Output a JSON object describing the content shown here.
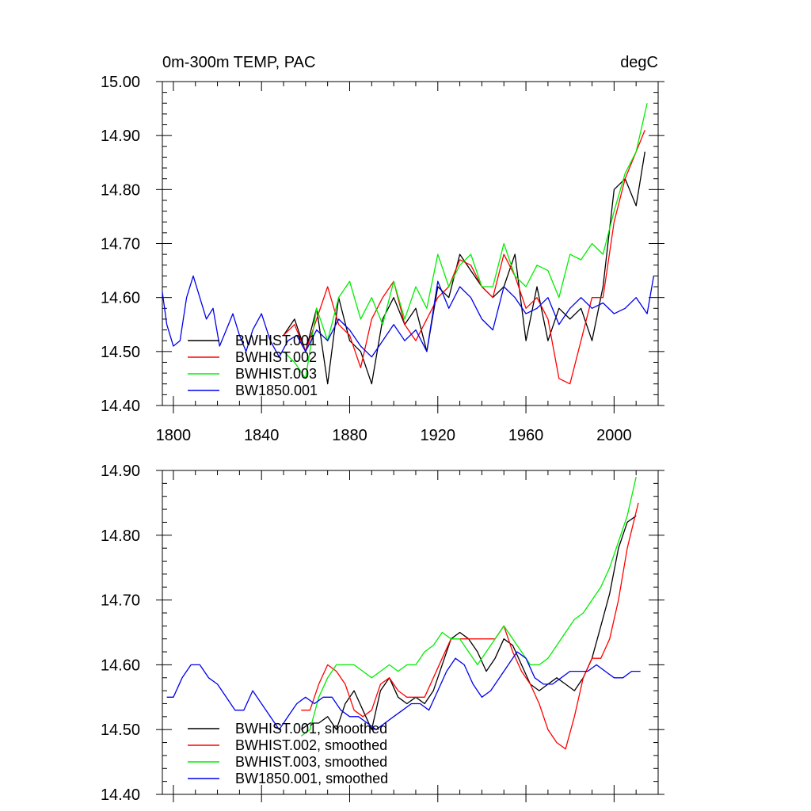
{
  "chart_data": [
    {
      "type": "line",
      "title_left": "0m-300m TEMP, PAC",
      "title_right": "degC",
      "xlabel": "",
      "ylabel": "",
      "xlim": [
        1795,
        2020
      ],
      "ylim": [
        14.4,
        15.0
      ],
      "x_ticks": [
        1800,
        1840,
        1880,
        1920,
        1960,
        2000
      ],
      "y_ticks": [
        14.4,
        14.5,
        14.6,
        14.7,
        14.8,
        14.9,
        15.0
      ],
      "y_tick_labels": [
        "14.40",
        "14.50",
        "14.60",
        "14.70",
        "14.80",
        "14.90",
        "15.00"
      ],
      "x_tick_labels": [
        "1800",
        "1840",
        "1880",
        "1920",
        "1960",
        "2000"
      ],
      "legend_position": "bottom-left",
      "series": [
        {
          "name": "BWHIST.001",
          "color": "#000000",
          "x": [
            1850,
            1855,
            1860,
            1865,
            1870,
            1875,
            1880,
            1885,
            1890,
            1895,
            1900,
            1905,
            1910,
            1915,
            1920,
            1925,
            1930,
            1935,
            1940,
            1945,
            1950,
            1955,
            1960,
            1965,
            1970,
            1975,
            1980,
            1985,
            1990,
            1995,
            2000,
            2005,
            2010,
            2014
          ],
          "y": [
            14.53,
            14.56,
            14.5,
            14.58,
            14.44,
            14.6,
            14.52,
            14.5,
            14.44,
            14.56,
            14.6,
            14.55,
            14.58,
            14.5,
            14.62,
            14.6,
            14.68,
            14.65,
            14.62,
            14.6,
            14.62,
            14.68,
            14.52,
            14.62,
            14.52,
            14.58,
            14.56,
            14.58,
            14.52,
            14.62,
            14.8,
            14.82,
            14.77,
            14.87
          ]
        },
        {
          "name": "BWHIST.002",
          "color": "#ff0000",
          "x": [
            1850,
            1855,
            1860,
            1865,
            1870,
            1875,
            1880,
            1885,
            1890,
            1895,
            1900,
            1905,
            1910,
            1915,
            1920,
            1925,
            1930,
            1935,
            1940,
            1945,
            1950,
            1955,
            1960,
            1965,
            1970,
            1975,
            1980,
            1985,
            1990,
            1995,
            2000,
            2005,
            2010,
            2014
          ],
          "y": [
            14.53,
            14.55,
            14.5,
            14.56,
            14.62,
            14.55,
            14.53,
            14.47,
            14.56,
            14.6,
            14.63,
            14.55,
            14.52,
            14.56,
            14.6,
            14.62,
            14.67,
            14.66,
            14.62,
            14.6,
            14.68,
            14.64,
            14.58,
            14.6,
            14.56,
            14.45,
            14.44,
            14.52,
            14.6,
            14.6,
            14.74,
            14.82,
            14.87,
            14.91
          ]
        },
        {
          "name": "BWHIST.003",
          "color": "#00ee00",
          "x": [
            1850,
            1855,
            1860,
            1865,
            1870,
            1875,
            1880,
            1885,
            1890,
            1895,
            1900,
            1905,
            1910,
            1915,
            1920,
            1925,
            1930,
            1935,
            1940,
            1945,
            1950,
            1955,
            1960,
            1965,
            1970,
            1975,
            1980,
            1985,
            1990,
            1995,
            2000,
            2005,
            2010,
            2015
          ],
          "y": [
            14.5,
            14.48,
            14.45,
            14.58,
            14.52,
            14.6,
            14.63,
            14.56,
            14.6,
            14.55,
            14.63,
            14.56,
            14.62,
            14.58,
            14.68,
            14.62,
            14.66,
            14.68,
            14.62,
            14.62,
            14.7,
            14.64,
            14.62,
            14.66,
            14.65,
            14.6,
            14.68,
            14.67,
            14.7,
            14.68,
            14.76,
            14.83,
            14.87,
            14.96
          ]
        },
        {
          "name": "BW1850.001",
          "color": "#0000ee",
          "x": [
            1795,
            1797,
            1800,
            1803,
            1806,
            1809,
            1812,
            1815,
            1818,
            1821,
            1824,
            1827,
            1830,
            1833,
            1836,
            1840,
            1844,
            1848,
            1852,
            1856,
            1860,
            1865,
            1870,
            1875,
            1880,
            1885,
            1890,
            1895,
            1900,
            1905,
            1910,
            1915,
            1920,
            1925,
            1930,
            1935,
            1940,
            1945,
            1950,
            1955,
            1960,
            1965,
            1970,
            1975,
            1980,
            1985,
            1990,
            1995,
            2000,
            2005,
            2010,
            2015,
            2018
          ],
          "y": [
            14.61,
            14.55,
            14.51,
            14.52,
            14.6,
            14.64,
            14.6,
            14.56,
            14.58,
            14.51,
            14.54,
            14.57,
            14.53,
            14.5,
            14.54,
            14.57,
            14.52,
            14.49,
            14.52,
            14.53,
            14.5,
            14.54,
            14.52,
            14.56,
            14.54,
            14.51,
            14.49,
            14.52,
            14.55,
            14.52,
            14.54,
            14.5,
            14.63,
            14.58,
            14.62,
            14.6,
            14.56,
            14.54,
            14.62,
            14.6,
            14.57,
            14.58,
            14.6,
            14.55,
            14.58,
            14.6,
            14.58,
            14.59,
            14.57,
            14.58,
            14.6,
            14.57,
            14.64
          ]
        }
      ]
    },
    {
      "type": "line",
      "title_left": "",
      "title_right": "",
      "xlabel": "",
      "ylabel": "",
      "xlim": [
        1795,
        2020
      ],
      "ylim": [
        14.4,
        14.9
      ],
      "x_ticks": [
        1800,
        1840,
        1880,
        1920,
        1960,
        2000
      ],
      "y_ticks": [
        14.4,
        14.5,
        14.6,
        14.7,
        14.8,
        14.9
      ],
      "y_tick_labels": [
        "14.40",
        "14.50",
        "14.60",
        "14.70",
        "14.80",
        "14.90"
      ],
      "legend_position": "bottom-left",
      "series": [
        {
          "name": "BWHIST.001, smoothed",
          "color": "#000000",
          "x": [
            1858,
            1862,
            1866,
            1870,
            1874,
            1878,
            1882,
            1886,
            1890,
            1894,
            1898,
            1902,
            1906,
            1910,
            1914,
            1918,
            1922,
            1926,
            1930,
            1934,
            1938,
            1942,
            1946,
            1950,
            1954,
            1958,
            1962,
            1966,
            1970,
            1974,
            1978,
            1982,
            1986,
            1990,
            1994,
            1998,
            2002,
            2006,
            2010
          ],
          "y": [
            14.5,
            14.51,
            14.51,
            14.52,
            14.5,
            14.54,
            14.56,
            14.53,
            14.5,
            14.56,
            14.58,
            14.55,
            14.54,
            14.55,
            14.54,
            14.56,
            14.6,
            14.64,
            14.65,
            14.64,
            14.62,
            14.59,
            14.61,
            14.64,
            14.63,
            14.6,
            14.57,
            14.56,
            14.57,
            14.58,
            14.57,
            14.56,
            14.58,
            14.61,
            14.66,
            14.71,
            14.78,
            14.82,
            14.83
          ]
        },
        {
          "name": "BWHIST.002, smoothed",
          "color": "#ff0000",
          "x": [
            1858,
            1862,
            1866,
            1870,
            1874,
            1878,
            1882,
            1886,
            1890,
            1894,
            1898,
            1902,
            1906,
            1910,
            1914,
            1918,
            1922,
            1926,
            1930,
            1934,
            1938,
            1942,
            1946,
            1950,
            1954,
            1958,
            1962,
            1966,
            1970,
            1974,
            1978,
            1982,
            1986,
            1990,
            1994,
            1998,
            2002,
            2006,
            2011
          ],
          "y": [
            14.53,
            14.53,
            14.57,
            14.6,
            14.59,
            14.57,
            14.53,
            14.52,
            14.53,
            14.57,
            14.58,
            14.56,
            14.55,
            14.55,
            14.55,
            14.58,
            14.61,
            14.64,
            14.64,
            14.64,
            14.64,
            14.64,
            14.64,
            14.66,
            14.62,
            14.59,
            14.57,
            14.54,
            14.5,
            14.48,
            14.47,
            14.52,
            14.58,
            14.61,
            14.61,
            14.64,
            14.7,
            14.78,
            14.85
          ]
        },
        {
          "name": "BWHIST.003, smoothed",
          "color": "#00ee00",
          "x": [
            1858,
            1862,
            1866,
            1870,
            1874,
            1878,
            1882,
            1886,
            1890,
            1894,
            1898,
            1902,
            1906,
            1910,
            1914,
            1918,
            1922,
            1926,
            1930,
            1934,
            1938,
            1942,
            1946,
            1950,
            1954,
            1958,
            1962,
            1966,
            1970,
            1974,
            1978,
            1982,
            1986,
            1990,
            1994,
            1998,
            2002,
            2006,
            2010
          ],
          "y": [
            14.49,
            14.5,
            14.55,
            14.58,
            14.6,
            14.6,
            14.6,
            14.59,
            14.58,
            14.59,
            14.6,
            14.59,
            14.6,
            14.6,
            14.62,
            14.63,
            14.65,
            14.64,
            14.64,
            14.62,
            14.6,
            14.62,
            14.64,
            14.66,
            14.64,
            14.62,
            14.6,
            14.6,
            14.61,
            14.63,
            14.65,
            14.67,
            14.68,
            14.7,
            14.72,
            14.75,
            14.79,
            14.83,
            14.89
          ]
        },
        {
          "name": "BW1850.001, smoothed",
          "color": "#0000ee",
          "x": [
            1797,
            1800,
            1804,
            1808,
            1812,
            1816,
            1820,
            1824,
            1828,
            1832,
            1836,
            1840,
            1844,
            1848,
            1852,
            1856,
            1860,
            1864,
            1868,
            1872,
            1876,
            1880,
            1884,
            1888,
            1892,
            1896,
            1900,
            1904,
            1908,
            1912,
            1916,
            1920,
            1924,
            1928,
            1932,
            1936,
            1940,
            1944,
            1948,
            1952,
            1956,
            1960,
            1964,
            1968,
            1972,
            1976,
            1980,
            1984,
            1988,
            1992,
            1996,
            2000,
            2004,
            2008,
            2012
          ],
          "y": [
            14.55,
            14.55,
            14.58,
            14.6,
            14.6,
            14.58,
            14.57,
            14.55,
            14.53,
            14.53,
            14.56,
            14.54,
            14.52,
            14.5,
            14.52,
            14.54,
            14.55,
            14.54,
            14.55,
            14.55,
            14.53,
            14.52,
            14.52,
            14.51,
            14.5,
            14.51,
            14.52,
            14.53,
            14.54,
            14.54,
            14.53,
            14.56,
            14.59,
            14.61,
            14.6,
            14.57,
            14.55,
            14.56,
            14.58,
            14.6,
            14.62,
            14.61,
            14.58,
            14.57,
            14.57,
            14.58,
            14.59,
            14.59,
            14.59,
            14.6,
            14.59,
            14.58,
            14.58,
            14.59,
            14.59
          ]
        }
      ]
    }
  ]
}
